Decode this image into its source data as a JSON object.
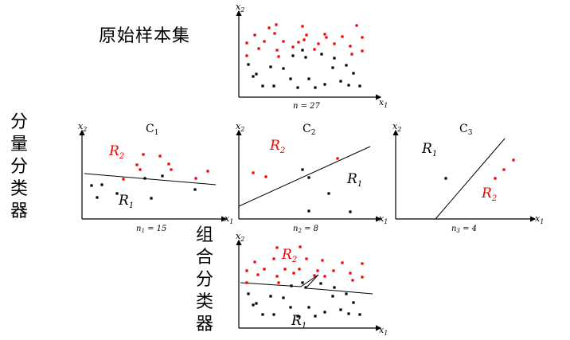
{
  "title_top": "原始样本集",
  "label_left": [
    "分",
    "量",
    "分",
    "类",
    "器"
  ],
  "label_combined": [
    "组",
    "合",
    "分",
    "类",
    "器"
  ],
  "axes": {
    "x1": "x",
    "x1_sub": "1",
    "x2": "x",
    "x2_sub": "2"
  },
  "panels": {
    "original": {
      "caption": "n = 27"
    },
    "c1": {
      "title": "C",
      "title_sub": "1",
      "caption_n": "n",
      "caption_sub": "1",
      "caption_val": " = 15",
      "region1": "R",
      "region1_sub": "1",
      "region2": "R",
      "region2_sub": "2"
    },
    "c2": {
      "title": "C",
      "title_sub": "2",
      "caption_n": "n",
      "caption_sub": "2",
      "caption_val": " = 8",
      "region1": "R",
      "region1_sub": "1",
      "region2": "R",
      "region2_sub": "2"
    },
    "c3": {
      "title": "C",
      "title_sub": "3",
      "caption_n": "n",
      "caption_sub": "3",
      "caption_val": " = 4",
      "region1": "R",
      "region1_sub": "1",
      "region2": "R",
      "region2_sub": "2"
    },
    "combined": {
      "region1": "R",
      "region1_sub": "1",
      "region2": "R",
      "region2_sub": "2"
    }
  },
  "colors": {
    "class1": "#000000",
    "class2": "#ee0000",
    "axis": "#000000"
  }
}
